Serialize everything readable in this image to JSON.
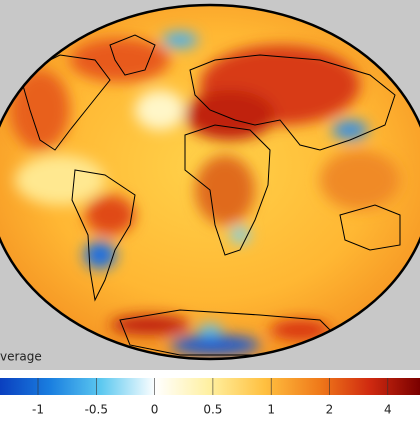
{
  "legend": {
    "label": "verage",
    "ticks": [
      -1,
      -0.5,
      0,
      0.5,
      1,
      2,
      4
    ]
  }
}
